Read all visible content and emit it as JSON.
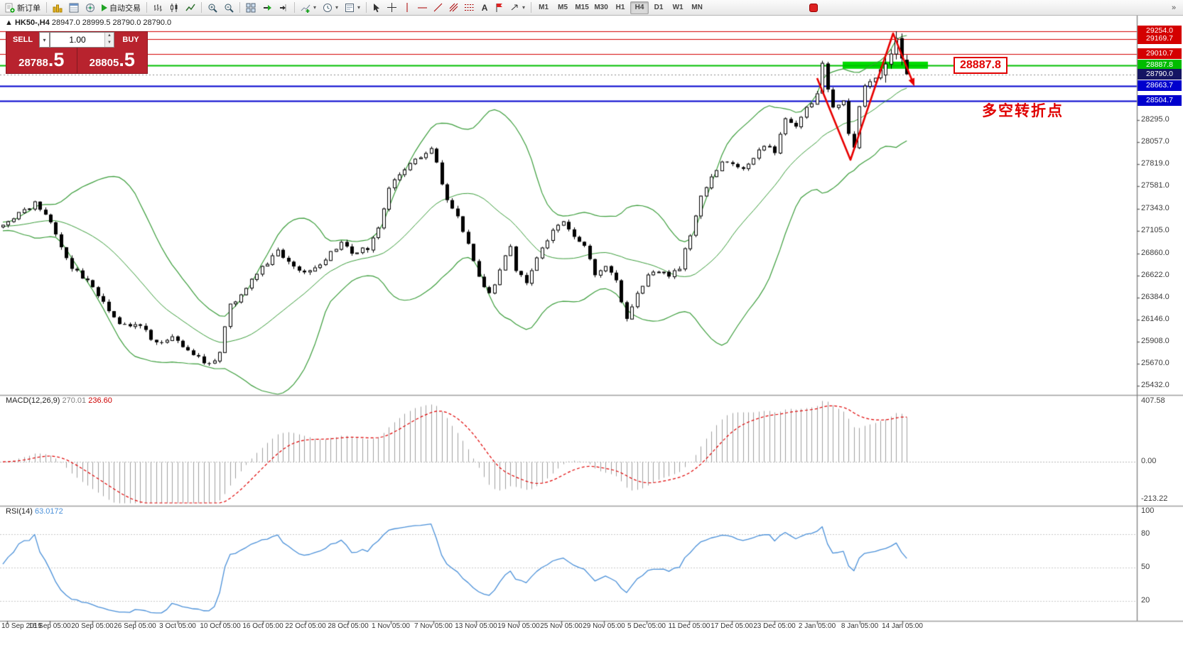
{
  "toolbar": {
    "new_order": "新订单",
    "autotrading": "自动交易",
    "timeframes": [
      "M1",
      "M5",
      "M15",
      "M30",
      "H1",
      "H4",
      "D1",
      "W1",
      "MN"
    ],
    "active_timeframe": "H4"
  },
  "chart_header": {
    "marker": "▲",
    "symbol": "HK50-,H4",
    "ohlc": "28947.0 28999.5 28790.0 28790.0"
  },
  "trade_panel": {
    "sell_label": "SELL",
    "buy_label": "BUY",
    "volume": "1.00",
    "sell_price": "28788",
    "sell_price_big": ".5",
    "buy_price": "28805",
    "buy_price_big": ".5"
  },
  "annotations": {
    "price_box": "28887.8",
    "turning_point": "多空转折点"
  },
  "macd": {
    "name": "MACD(12,26,9)",
    "value1": "270.01",
    "value2": "236.60",
    "axis_top": "407.58",
    "axis_zero": "0.00",
    "axis_bottom": "-213.22"
  },
  "rsi": {
    "name": "RSI(14)",
    "value": "63.0172",
    "axis": [
      100,
      80,
      50,
      20
    ]
  },
  "time_axis": [
    "10 Sep 2019",
    "16 Sep 05:00",
    "20 Sep 05:00",
    "26 Sep 05:00",
    "3 Oct 05:00",
    "10 Oct 05:00",
    "16 Oct 05:00",
    "22 Oct 05:00",
    "28 Oct 05:00",
    "1 Nov 05:00",
    "7 Nov 05:00",
    "13 Nov 05:00",
    "19 Nov 05:00",
    "25 Nov 05:00",
    "29 Nov 05:00",
    "5 Dec 05:00",
    "11 Dec 05:00",
    "17 Dec 05:00",
    "23 Dec 05:00",
    "2 Jan 05:00",
    "8 Jan 05:00",
    "14 Jan 05:00"
  ],
  "chart_data": {
    "type": "candlestick",
    "symbol": "HK50-",
    "timeframe": "H4",
    "ylim": [
      25432.0,
      29254.0
    ],
    "price_ticks": [
      28295.0,
      28057.0,
      27819.0,
      27581.0,
      27343.0,
      27105.0,
      26860.0,
      26622.0,
      26384.0,
      26146.0,
      25908.0,
      25670.0,
      25432.0
    ],
    "tagged_levels": [
      {
        "price": 29254.0,
        "color": "red"
      },
      {
        "price": 29169.7,
        "color": "red"
      },
      {
        "price": 29010.7,
        "color": "red"
      },
      {
        "price": 28887.8,
        "color": "green"
      },
      {
        "price": 28790.0,
        "color": "navy"
      },
      {
        "price": 28663.7,
        "color": "blue"
      },
      {
        "price": 28504.7,
        "color": "blue"
      }
    ],
    "current_price": 28790.0,
    "indicators": {
      "bollinger_period": 20,
      "bollinger_dev": 2,
      "macd": [
        12,
        26,
        9
      ],
      "rsi": 14
    },
    "price_path": [
      [
        0,
        27150
      ],
      [
        3,
        27300
      ],
      [
        6,
        27390
      ],
      [
        9,
        27180
      ],
      [
        13,
        26700
      ],
      [
        16,
        26560
      ],
      [
        19,
        26320
      ],
      [
        22,
        26120
      ],
      [
        26,
        26060
      ],
      [
        29,
        25900
      ],
      [
        32,
        25960
      ],
      [
        36,
        25770
      ],
      [
        39,
        25650
      ],
      [
        41,
        25800
      ],
      [
        43,
        26300
      ],
      [
        46,
        26480
      ],
      [
        49,
        26700
      ],
      [
        52,
        26900
      ],
      [
        54,
        26760
      ],
      [
        57,
        26660
      ],
      [
        60,
        26760
      ],
      [
        62,
        26860
      ],
      [
        64,
        26960
      ],
      [
        66,
        26860
      ],
      [
        69,
        26920
      ],
      [
        71,
        27120
      ],
      [
        73,
        27560
      ],
      [
        75,
        27700
      ],
      [
        78,
        27860
      ],
      [
        81,
        28010
      ],
      [
        83,
        27620
      ],
      [
        84,
        27420
      ],
      [
        86,
        27260
      ],
      [
        88,
        26960
      ],
      [
        90,
        26620
      ],
      [
        92,
        26420
      ],
      [
        94,
        26660
      ],
      [
        96,
        26960
      ],
      [
        97,
        26660
      ],
      [
        99,
        26560
      ],
      [
        101,
        26800
      ],
      [
        104,
        27100
      ],
      [
        106,
        27210
      ],
      [
        108,
        27060
      ],
      [
        110,
        26960
      ],
      [
        112,
        26620
      ],
      [
        114,
        26710
      ],
      [
        116,
        26560
      ],
      [
        118,
        26160
      ],
      [
        120,
        26420
      ],
      [
        122,
        26610
      ],
      [
        124,
        26660
      ],
      [
        126,
        26610
      ],
      [
        128,
        26710
      ],
      [
        130,
        27060
      ],
      [
        132,
        27500
      ],
      [
        134,
        27660
      ],
      [
        136,
        27860
      ],
      [
        138,
        27810
      ],
      [
        140,
        27760
      ],
      [
        142,
        27900
      ],
      [
        144,
        28030
      ],
      [
        146,
        27960
      ],
      [
        148,
        28290
      ],
      [
        150,
        28210
      ],
      [
        152,
        28430
      ],
      [
        154,
        28560
      ],
      [
        155,
        28900
      ],
      [
        156,
        28650
      ],
      [
        157,
        28460
      ],
      [
        159,
        28510
      ],
      [
        160,
        28160
      ],
      [
        161,
        28000
      ],
      [
        162,
        28460
      ],
      [
        163,
        28660
      ],
      [
        165,
        28760
      ],
      [
        166,
        28860
      ],
      [
        167,
        28950
      ],
      [
        168,
        29100
      ],
      [
        169,
        29210
      ],
      [
        170,
        28960
      ],
      [
        171,
        28790
      ]
    ],
    "final_bars": [
      [
        28780,
        28970,
        28700,
        28900
      ],
      [
        28900,
        29060,
        28850,
        29010
      ],
      [
        29010,
        29254,
        28950,
        29180
      ],
      [
        29180,
        29230,
        28890,
        28960
      ],
      [
        28947,
        28999.5,
        28790,
        28790
      ]
    ]
  }
}
